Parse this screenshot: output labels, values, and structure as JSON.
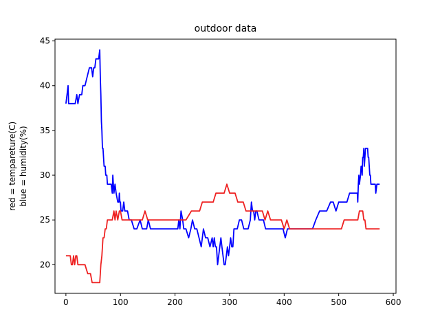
{
  "chart_data": {
    "type": "line",
    "title": "outdoor data",
    "xlabel": "",
    "ylabel_lines": [
      "red = tempareture(C)",
      "blue = humidity(%)"
    ],
    "xlim": [
      -20,
      605
    ],
    "ylim": [
      16.8,
      45.2
    ],
    "x_ticks": [
      0,
      100,
      200,
      300,
      400,
      500,
      600
    ],
    "y_ticks": [
      20,
      25,
      30,
      35,
      40,
      45
    ],
    "grid": false,
    "series": [
      {
        "color": "#0000ff",
        "x": [
          0,
          2,
          4,
          5,
          6,
          8,
          12,
          17,
          20,
          22,
          25,
          27,
          29,
          31,
          35,
          39,
          43,
          47,
          49,
          51,
          53,
          55,
          58,
          60,
          62,
          63,
          64,
          65,
          66,
          67,
          68,
          69,
          70,
          72,
          73,
          74,
          75,
          76,
          77,
          78,
          80,
          83,
          85,
          86,
          87,
          88,
          90,
          92,
          95,
          97,
          98,
          99,
          100,
          101,
          104,
          106,
          108,
          110,
          113,
          116,
          120,
          125,
          130,
          136,
          140,
          145,
          148,
          151,
          155,
          160,
          170,
          180,
          190,
          200,
          205,
          207,
          209,
          211,
          214,
          216,
          220,
          225,
          229,
          232,
          236,
          240,
          244,
          248,
          252,
          256,
          260,
          264,
          268,
          270,
          272,
          274,
          276,
          278,
          280,
          282,
          284,
          286,
          288,
          290,
          292,
          294,
          296,
          298,
          300,
          302,
          304,
          306,
          308,
          310,
          314,
          318,
          322,
          326,
          330,
          334,
          338,
          340,
          342,
          344,
          346,
          348,
          350,
          354,
          358,
          362,
          366,
          370,
          374,
          378,
          382,
          386,
          390,
          394,
          398,
          402,
          406,
          410,
          415,
          420,
          430,
          440,
          448,
          452,
          458,
          465,
          470,
          478,
          485,
          490,
          495,
          500,
          505,
          510,
          515,
          520,
          525,
          530,
          534,
          535,
          536,
          537,
          538,
          540,
          541,
          542,
          543,
          544,
          545,
          546,
          547,
          548,
          549,
          550,
          551,
          552,
          553,
          554,
          555,
          556,
          557,
          558,
          559,
          560,
          561,
          562,
          563,
          564,
          565,
          566,
          567,
          568,
          570,
          575
        ],
        "y": [
          38,
          39,
          40,
          38,
          38,
          38,
          38,
          38,
          39,
          38,
          39,
          39,
          39,
          40,
          40,
          41,
          42,
          42,
          41,
          42,
          42,
          43,
          43,
          43,
          44,
          41,
          39,
          36,
          35,
          33,
          33,
          32,
          31,
          31,
          30,
          30,
          30,
          29,
          29,
          29,
          29,
          29,
          28,
          30,
          29,
          28,
          29,
          28,
          27,
          27,
          28,
          27,
          27,
          26,
          26,
          27,
          26,
          26,
          26,
          25,
          25,
          24,
          24,
          25,
          24,
          24,
          24,
          25,
          24,
          24,
          24,
          24,
          24,
          24,
          24,
          25,
          24,
          26,
          25,
          24,
          24,
          23,
          24,
          25,
          24,
          24,
          23,
          22,
          24,
          23,
          23,
          22,
          23,
          22,
          23,
          22,
          22,
          20,
          21,
          22,
          23,
          22,
          21,
          20,
          20,
          21,
          22,
          21,
          22,
          23,
          22,
          22,
          24,
          24,
          24,
          25,
          25,
          24,
          24,
          24,
          25,
          27,
          26,
          26,
          25,
          26,
          26,
          25,
          25,
          25,
          24,
          24,
          24,
          24,
          24,
          24,
          24,
          24,
          24,
          23,
          24,
          24,
          24,
          24,
          24,
          24,
          24,
          24,
          25,
          26,
          26,
          26,
          27,
          27,
          26,
          27,
          27,
          27,
          27,
          28,
          28,
          28,
          28,
          27,
          29,
          30,
          29,
          30,
          31,
          31,
          30,
          32,
          32,
          33,
          31,
          32,
          33,
          33,
          33,
          33,
          33,
          32,
          32,
          31,
          30,
          30,
          29,
          29,
          29,
          29,
          29,
          29,
          29,
          29,
          29,
          28,
          29,
          29
        ]
      },
      {
        "color": "#ee2222",
        "x": [
          0,
          4,
          8,
          10,
          12,
          14,
          16,
          18,
          20,
          22,
          24,
          26,
          28,
          30,
          35,
          40,
          45,
          48,
          52,
          56,
          60,
          62,
          64,
          66,
          67,
          68,
          69,
          70,
          72,
          74,
          76,
          78,
          80,
          82,
          85,
          88,
          90,
          92,
          95,
          98,
          100,
          103,
          106,
          110,
          115,
          120,
          125,
          130,
          135,
          140,
          145,
          150,
          160,
          170,
          180,
          190,
          200,
          210,
          220,
          230,
          235,
          240,
          245,
          250,
          255,
          260,
          265,
          270,
          275,
          280,
          285,
          290,
          295,
          300,
          305,
          310,
          315,
          320,
          325,
          330,
          335,
          340,
          345,
          350,
          355,
          360,
          365,
          370,
          375,
          380,
          385,
          390,
          395,
          400,
          405,
          410,
          420,
          430,
          440,
          450,
          460,
          470,
          480,
          490,
          500,
          505,
          510,
          515,
          520,
          525,
          530,
          535,
          538,
          540,
          542,
          544,
          546,
          548,
          550,
          555,
          560,
          565,
          570,
          575
        ],
        "y": [
          21,
          21,
          21,
          20,
          20,
          21,
          20,
          21,
          21,
          20,
          20,
          20,
          20,
          20,
          20,
          19,
          19,
          18,
          18,
          18,
          18,
          18,
          20,
          21,
          22,
          23,
          23,
          23,
          24,
          24,
          25,
          25,
          25,
          25,
          25,
          26,
          25,
          26,
          25,
          26,
          26,
          25,
          25,
          25,
          25,
          25,
          25,
          25,
          25,
          25,
          26,
          25,
          25,
          25,
          25,
          25,
          25,
          25,
          25,
          26,
          26,
          26,
          26,
          27,
          27,
          27,
          27,
          27,
          28,
          28,
          28,
          28,
          29,
          28,
          28,
          28,
          27,
          27,
          27,
          26,
          26,
          26,
          26,
          26,
          26,
          26,
          25,
          26,
          25,
          25,
          25,
          25,
          25,
          24,
          25,
          24,
          24,
          24,
          24,
          24,
          24,
          24,
          24,
          24,
          24,
          24,
          25,
          25,
          25,
          25,
          25,
          25,
          26,
          26,
          26,
          26,
          25,
          25,
          24,
          24,
          24,
          24,
          24,
          24
        ]
      }
    ]
  }
}
